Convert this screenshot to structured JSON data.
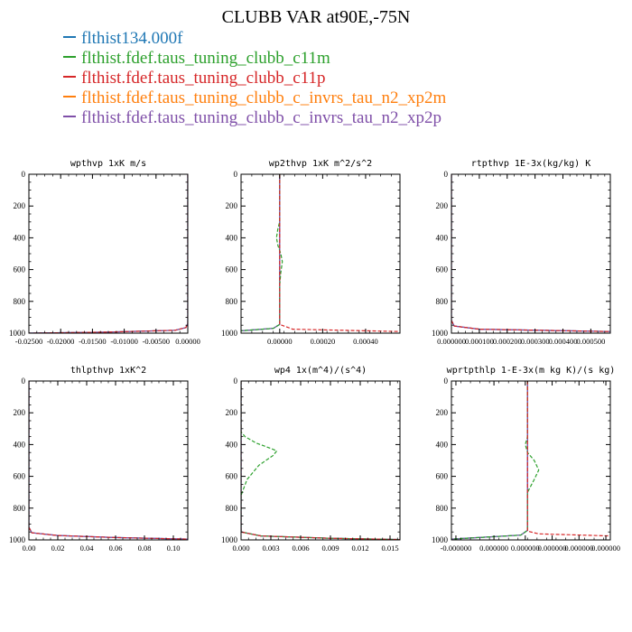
{
  "title": "CLUBB VAR at90E,-75N",
  "legend": [
    {
      "name": "flthist134.000f",
      "color": "#1f77b4"
    },
    {
      "name": "flthist.fdef.taus_tuning_clubb_c11m",
      "color": "#2ca02c"
    },
    {
      "name": "flthist.fdef.taus_tuning_clubb_c11p",
      "color": "#d62728"
    },
    {
      "name": "flthist.fdef.taus_tuning_clubb_c_invrs_tau_n2_xp2m",
      "color": "#ff7f0e"
    },
    {
      "name": "flthist.fdef.taus_tuning_clubb_c_invrs_tau_n2_xp2p",
      "color": "#7f4fa8"
    }
  ],
  "chart_data": [
    {
      "type": "line",
      "title": "wpthvp  1xK m/s",
      "xlim": [
        -0.025,
        0.0
      ],
      "ylim": [
        1000,
        0
      ],
      "xticks": [
        "-0.02500",
        "-0.02000",
        "-0.01500",
        "-0.01000",
        "-0.00500",
        "0.00000"
      ],
      "xtick_values": [
        -0.025,
        -0.02,
        -0.015,
        -0.01,
        -0.005,
        0.0
      ],
      "yticks": [
        "0",
        "200",
        "400",
        "600",
        "800",
        "1000"
      ],
      "series": [
        {
          "color": "#1f77b4",
          "x": [
            0,
            0,
            0,
            -0.0003,
            -0.002,
            -0.0125,
            -0.025
          ],
          "y": [
            0,
            800,
            940,
            965,
            982,
            993,
            1000
          ]
        },
        {
          "color": "#7f4fa8",
          "x": [
            0,
            0,
            0,
            -0.0003,
            -0.002,
            -0.0125,
            -0.025
          ],
          "y": [
            0,
            800,
            940,
            965,
            982,
            993,
            1000
          ]
        },
        {
          "color": "#d62728",
          "x": [
            0,
            0,
            0,
            -0.0003,
            -0.002,
            -0.0125,
            -0.025
          ],
          "y": [
            0,
            800,
            940,
            965,
            982,
            993,
            1000
          ],
          "dashed": true
        }
      ]
    },
    {
      "type": "line",
      "title": "wp2thvp  1xK m^2/s^2",
      "xlim": [
        -0.00018,
        0.00056
      ],
      "ylim": [
        1000,
        0
      ],
      "xticks": [
        "0.00000",
        "0.00020",
        "0.00040"
      ],
      "xtick_values": [
        0.0,
        0.0002,
        0.0004
      ],
      "yticks": [
        "0",
        "200",
        "400",
        "600",
        "800",
        "1000"
      ],
      "series": [
        {
          "color": "#1f77b4",
          "x": [
            0,
            0,
            0,
            -3e-05,
            -0.00018
          ],
          "y": [
            0,
            900,
            945,
            970,
            985
          ]
        },
        {
          "color": "#7f4fa8",
          "x": [
            0,
            0,
            0,
            -3e-05,
            -0.00018
          ],
          "y": [
            0,
            900,
            945,
            970,
            985
          ]
        },
        {
          "color": "#2ca02c",
          "x": [
            0,
            0,
            -8e-06,
            -1.5e-05,
            -8e-06,
            5e-06,
            1.2e-05,
            5e-06,
            0,
            0,
            -3e-05,
            -0.00018
          ],
          "y": [
            0,
            300,
            340,
            400,
            450,
            500,
            550,
            620,
            700,
            945,
            970,
            985
          ],
          "dashed": true
        },
        {
          "color": "#d62728",
          "x": [
            0,
            0,
            6e-05,
            0.00056
          ],
          "y": [
            0,
            945,
            975,
            990
          ],
          "dashed": true
        }
      ]
    },
    {
      "type": "line",
      "title": "rtpthvp  1E-3x(kg/kg) K",
      "xlim": [
        0.0,
        0.00057
      ],
      "ylim": [
        1000,
        0
      ],
      "xticks": [
        "0.000000",
        "0.000100",
        "0.000200",
        "0.000300",
        "0.000400",
        "0.000500"
      ],
      "xtick_values": [
        0.0,
        0.0001,
        0.0002,
        0.0003,
        0.0004,
        0.0005
      ],
      "yticks": [
        "0",
        "200",
        "400",
        "600",
        "800",
        "1000"
      ],
      "series": [
        {
          "color": "#1f77b4",
          "x": [
            0,
            0,
            1e-05,
            0.0001,
            0.00057
          ],
          "y": [
            0,
            920,
            955,
            975,
            990
          ]
        },
        {
          "color": "#7f4fa8",
          "x": [
            0,
            0,
            1e-05,
            0.0001,
            0.00057
          ],
          "y": [
            0,
            920,
            955,
            975,
            990
          ]
        },
        {
          "color": "#d62728",
          "x": [
            0,
            0,
            1e-05,
            0.0001,
            0.00057
          ],
          "y": [
            0,
            920,
            955,
            975,
            990
          ],
          "dashed": true
        }
      ]
    },
    {
      "type": "line",
      "title": "thlpthvp  1xK^2",
      "xlim": [
        0.0,
        0.11
      ],
      "ylim": [
        1000,
        0
      ],
      "xticks": [
        "0.00",
        "0.02",
        "0.04",
        "0.06",
        "0.08",
        "0.10"
      ],
      "xtick_values": [
        0.0,
        0.02,
        0.04,
        0.06,
        0.08,
        0.1
      ],
      "yticks": [
        "0",
        "200",
        "400",
        "600",
        "800",
        "1000"
      ],
      "series": [
        {
          "color": "#1f77b4",
          "x": [
            0,
            0,
            0.002,
            0.02,
            0.06,
            0.11
          ],
          "y": [
            0,
            920,
            955,
            972,
            985,
            995
          ]
        },
        {
          "color": "#7f4fa8",
          "x": [
            0,
            0,
            0.002,
            0.02,
            0.06,
            0.11
          ],
          "y": [
            0,
            920,
            955,
            972,
            985,
            995
          ]
        },
        {
          "color": "#d62728",
          "x": [
            0,
            0,
            0.002,
            0.02,
            0.06,
            0.11
          ],
          "y": [
            0,
            920,
            955,
            972,
            985,
            995
          ],
          "dashed": true
        }
      ]
    },
    {
      "type": "line",
      "title": "wp4  1x(m^4)/(s^4)",
      "xlim": [
        0.0,
        0.016
      ],
      "ylim": [
        1000,
        0
      ],
      "xticks": [
        "0.000",
        "0.003",
        "0.006",
        "0.009",
        "0.012",
        "0.015"
      ],
      "xtick_values": [
        0.0,
        0.003,
        0.006,
        0.009,
        0.012,
        0.015
      ],
      "yticks": [
        "0",
        "200",
        "400",
        "600",
        "800",
        "1000"
      ],
      "series": [
        {
          "color": "#1f77b4",
          "x": [
            0,
            0,
            0.002,
            0.009,
            0.016
          ],
          "y": [
            0,
            950,
            975,
            990,
            998
          ]
        },
        {
          "color": "#7f4fa8",
          "x": [
            0,
            0,
            0.002,
            0.009,
            0.016
          ],
          "y": [
            0,
            950,
            975,
            990,
            998
          ]
        },
        {
          "color": "#2ca02c",
          "x": [
            0,
            0,
            0.0004,
            0.0015,
            0.0028,
            0.0036,
            0.0032,
            0.0018,
            0.0006,
            0,
            0,
            0.002,
            0.009,
            0.016
          ],
          "y": [
            0,
            320,
            350,
            390,
            420,
            440,
            470,
            530,
            620,
            720,
            950,
            975,
            990,
            998
          ],
          "dashed": true
        },
        {
          "color": "#d62728",
          "x": [
            0,
            0,
            0.002,
            0.009,
            0.016
          ],
          "y": [
            0,
            950,
            975,
            990,
            998
          ],
          "dashed": true
        }
      ]
    },
    {
      "type": "line",
      "title": "wprtpthlp  1-E-3x(m kg K)/(s kg)",
      "xlim": [
        -9e-07,
        6.2e-06
      ],
      "ylim": [
        1000,
        0
      ],
      "xticks": [
        "-0.000000",
        "0.000000",
        "0.000000",
        "0.000000",
        "0.000000",
        "0.000000"
      ],
      "xtick_values": [
        -7e-07,
        1e-06,
        2.4e-06,
        3.6e-06,
        4.8e-06,
        6e-06
      ],
      "yticks": [
        "0",
        "200",
        "400",
        "600",
        "800",
        "1000"
      ],
      "series": [
        {
          "color": "#1f77b4",
          "x": [
            2.5e-06,
            2.5e-06,
            2.2e-06,
            -9e-07
          ],
          "y": [
            0,
            940,
            970,
            995
          ]
        },
        {
          "color": "#7f4fa8",
          "x": [
            2.5e-06,
            2.5e-06,
            2.2e-06,
            -9e-07
          ],
          "y": [
            0,
            940,
            970,
            995
          ]
        },
        {
          "color": "#2ca02c",
          "x": [
            2.5e-06,
            2.5e-06,
            2.4e-06,
            2.5e-06,
            2.8e-06,
            3e-06,
            2.8e-06,
            2.5e-06,
            2.5e-06,
            2.2e-06,
            -9e-07
          ],
          "y": [
            0,
            350,
            400,
            450,
            500,
            560,
            620,
            700,
            940,
            970,
            995
          ],
          "dashed": true
        },
        {
          "color": "#d62728",
          "x": [
            2.5e-06,
            2.5e-06,
            3e-06,
            6.2e-06
          ],
          "y": [
            0,
            945,
            962,
            975
          ],
          "dashed": true
        }
      ]
    }
  ]
}
